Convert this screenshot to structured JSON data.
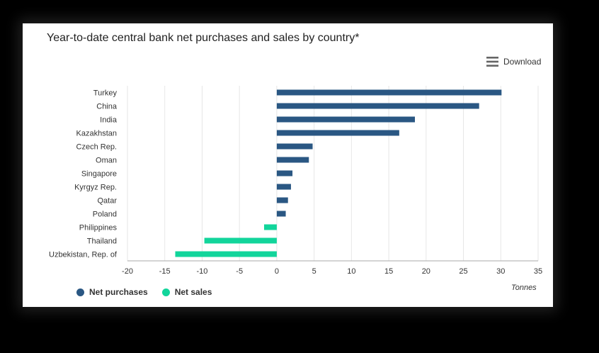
{
  "header": {
    "download_label": "Download",
    "download_icon": "hamburger-menu-icon"
  },
  "colors": {
    "purchases": "#2a5783",
    "sales": "#12d59b",
    "grid": "#e6e6e6",
    "axis": "#aaaaaa"
  },
  "chart_data": {
    "type": "bar",
    "orientation": "horizontal",
    "title": "Year-to-date central bank net purchases and sales by country*",
    "xlabel": "Tonnes",
    "ylabel": "",
    "xlim": [
      -20,
      35
    ],
    "xticks": [
      -20,
      -15,
      -10,
      -5,
      0,
      5,
      10,
      15,
      20,
      25,
      30,
      35
    ],
    "grid": true,
    "legend_position": "bottom-left",
    "categories": [
      "Turkey",
      "China",
      "India",
      "Kazakhstan",
      "Czech Rep.",
      "Oman",
      "Singapore",
      "Kyrgyz Rep.",
      "Qatar",
      "Poland",
      "Philippines",
      "Thailand",
      "Uzbekistan, Rep. of"
    ],
    "values": [
      30.1,
      27.1,
      18.5,
      16.4,
      4.8,
      4.3,
      2.1,
      1.9,
      1.5,
      1.2,
      -1.7,
      -9.7,
      -13.6
    ],
    "series": [
      {
        "name": "Net purchases",
        "color": "#2a5783"
      },
      {
        "name": "Net sales",
        "color": "#12d59b"
      }
    ]
  }
}
